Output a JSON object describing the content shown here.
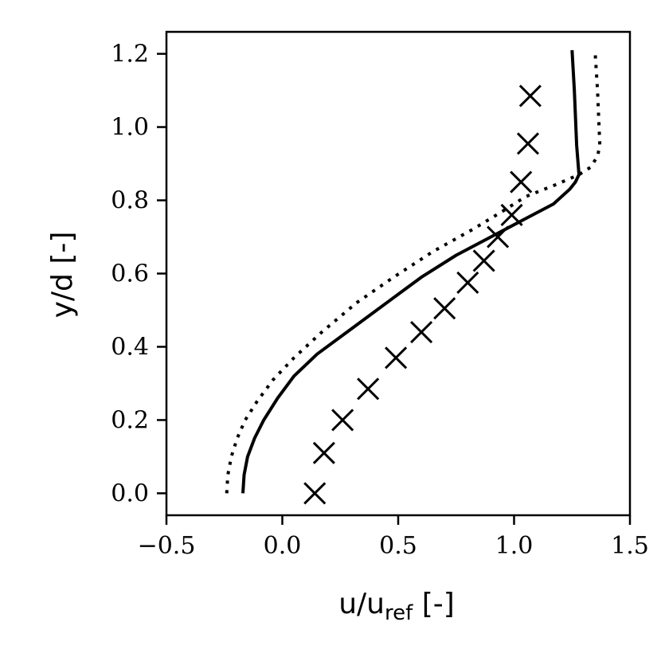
{
  "chart_data": {
    "type": "line",
    "xlabel": {
      "main": "u/u",
      "sub": "ref",
      "unit": " [-]"
    },
    "ylabel": {
      "main": "y/d",
      "unit": " [-]"
    },
    "xlim": [
      -0.5,
      1.5
    ],
    "ylim": [
      -0.06,
      1.26
    ],
    "xticks": [
      -0.5,
      0.0,
      0.5,
      1.0,
      1.5
    ],
    "xtick_labels": [
      "−0.5",
      "0.0",
      "0.5",
      "1.0",
      "1.5"
    ],
    "yticks": [
      0.0,
      0.2,
      0.4,
      0.6,
      0.8,
      1.0,
      1.2
    ],
    "ytick_labels": [
      "0.0",
      "0.2",
      "0.4",
      "0.6",
      "0.8",
      "1.0",
      "1.2"
    ],
    "grid": false,
    "series": [
      {
        "style": "solid",
        "color": "#000000",
        "x": [
          -0.17,
          -0.165,
          -0.15,
          -0.12,
          -0.08,
          -0.02,
          0.05,
          0.15,
          0.3,
          0.45,
          0.6,
          0.75,
          0.9,
          1.05,
          1.17,
          1.24,
          1.265,
          1.28,
          1.27,
          1.26,
          1.25
        ],
        "y": [
          0.0,
          0.05,
          0.1,
          0.15,
          0.2,
          0.26,
          0.32,
          0.38,
          0.45,
          0.52,
          0.59,
          0.65,
          0.7,
          0.75,
          0.79,
          0.83,
          0.85,
          0.87,
          0.95,
          1.1,
          1.21
        ]
      },
      {
        "style": "dotted",
        "color": "#000000",
        "x": [
          -0.24,
          -0.235,
          -0.22,
          -0.195,
          -0.16,
          -0.11,
          -0.04,
          0.05,
          0.17,
          0.32,
          0.48,
          0.65,
          0.82,
          0.95,
          1.05,
          1.17,
          1.28,
          1.33,
          1.36,
          1.37,
          1.36,
          1.35
        ],
        "y": [
          0.0,
          0.05,
          0.1,
          0.15,
          0.2,
          0.25,
          0.31,
          0.37,
          0.44,
          0.52,
          0.59,
          0.66,
          0.72,
          0.77,
          0.81,
          0.84,
          0.87,
          0.89,
          0.92,
          0.95,
          1.1,
          1.2
        ]
      },
      {
        "style": "markers",
        "marker": "x",
        "color": "#000000",
        "x": [
          0.14,
          0.18,
          0.26,
          0.37,
          0.49,
          0.6,
          0.7,
          0.8,
          0.87,
          0.93,
          0.99,
          1.03,
          1.06,
          1.07
        ],
        "y": [
          0.0,
          0.11,
          0.2,
          0.285,
          0.37,
          0.44,
          0.505,
          0.575,
          0.635,
          0.7,
          0.76,
          0.85,
          0.955,
          1.085
        ]
      }
    ]
  }
}
